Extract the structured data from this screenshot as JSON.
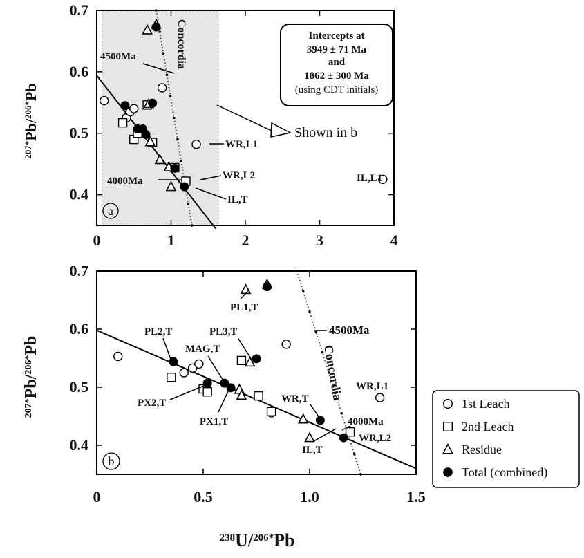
{
  "chart_data": [
    {
      "type": "scatter",
      "panel": "a",
      "xlim": [
        0,
        4
      ],
      "ylim": [
        0.35,
        0.7
      ],
      "xticks": [
        "0",
        "1",
        "2",
        "3",
        "4"
      ],
      "yticks": [
        "0.4",
        "0.5",
        "0.6",
        "0.7"
      ],
      "series": [
        {
          "name": "1st Leach",
          "marker": "circle-open",
          "points": [
            [
              0.1,
              0.553
            ],
            [
              0.4,
              0.525
            ],
            [
              0.45,
              0.535
            ],
            [
              0.5,
              0.54
            ],
            [
              0.88,
              0.574
            ],
            [
              1.34,
              0.482
            ],
            [
              3.85,
              0.425
            ]
          ]
        },
        {
          "name": "2nd Leach",
          "marker": "square-open",
          "points": [
            [
              0.35,
              0.517
            ],
            [
              0.5,
              0.49
            ],
            [
              0.55,
              0.5
            ],
            [
              0.75,
              0.485
            ],
            [
              0.68,
              0.546
            ],
            [
              1.2,
              0.422
            ],
            [
              1.05,
              0.444
            ]
          ]
        },
        {
          "name": "Residue",
          "marker": "triangle-open",
          "points": [
            [
              0.7,
              0.548
            ],
            [
              0.8,
              0.677
            ],
            [
              0.68,
              0.668
            ],
            [
              0.72,
              0.486
            ],
            [
              0.85,
              0.457
            ],
            [
              1.0,
              0.413
            ],
            [
              0.97,
              0.445
            ]
          ]
        },
        {
          "name": "Total (combined)",
          "marker": "circle-filled",
          "points": [
            [
              0.38,
              0.545
            ],
            [
              0.55,
              0.507
            ],
            [
              0.62,
              0.507
            ],
            [
              0.66,
              0.498
            ],
            [
              0.75,
              0.549
            ],
            [
              0.8,
              0.673
            ],
            [
              1.05,
              0.443
            ],
            [
              1.18,
              0.413
            ]
          ]
        }
      ],
      "regression_line": [
        [
          0,
          0.594
        ],
        [
          1.6,
          0.345
        ]
      ],
      "concordia": [
        [
          0.8,
          0.7
        ],
        [
          1.28,
          0.35
        ]
      ],
      "labels": {
        "c4500": "4500Ma",
        "c4000": "4000Ma",
        "concordia": "Concordia",
        "wr_l1": "WR,L1",
        "wr_l2": "WR,L2",
        "il_t": "IL,T",
        "il_l1": "IL,L1",
        "shown": "Shown in b",
        "panel": "a"
      },
      "intercept_box": [
        "Intercepts at",
        "3949 ± 71  Ma",
        "and",
        "1862 ± 300  Ma",
        "(using CDT initials)"
      ]
    },
    {
      "type": "scatter",
      "panel": "b",
      "xlim": [
        0,
        1.5
      ],
      "ylim": [
        0.35,
        0.7
      ],
      "xticks": [
        "0",
        "0.5",
        "1.0",
        "1.5"
      ],
      "yticks": [
        "0.4",
        "0.5",
        "0.6",
        "0.7"
      ],
      "series": [
        {
          "name": "1st Leach",
          "marker": "circle-open",
          "points": [
            [
              0.1,
              0.553
            ],
            [
              0.41,
              0.525
            ],
            [
              0.45,
              0.533
            ],
            [
              0.48,
              0.54
            ],
            [
              0.89,
              0.574
            ],
            [
              1.33,
              0.482
            ],
            [
              0.82,
              0.456
            ]
          ]
        },
        {
          "name": "2nd Leach",
          "marker": "square-open",
          "points": [
            [
              0.35,
              0.517
            ],
            [
              0.5,
              0.497
            ],
            [
              0.52,
              0.492
            ],
            [
              0.68,
              0.546
            ],
            [
              0.76,
              0.485
            ],
            [
              0.82,
              0.458
            ],
            [
              1.19,
              0.423
            ]
          ]
        },
        {
          "name": "Residue",
          "marker": "triangle-open",
          "points": [
            [
              0.7,
              0.668
            ],
            [
              0.8,
              0.677
            ],
            [
              0.72,
              0.543
            ],
            [
              0.67,
              0.496
            ],
            [
              0.68,
              0.486
            ],
            [
              0.97,
              0.445
            ],
            [
              1.0,
              0.413
            ]
          ]
        },
        {
          "name": "Total (combined)",
          "marker": "circle-filled",
          "points": [
            [
              0.36,
              0.544
            ],
            [
              0.52,
              0.507
            ],
            [
              0.6,
              0.507
            ],
            [
              0.63,
              0.499
            ],
            [
              0.75,
              0.549
            ],
            [
              0.8,
              0.673
            ],
            [
              1.05,
              0.443
            ],
            [
              1.16,
              0.413
            ]
          ]
        }
      ],
      "regression_line": [
        [
          0,
          0.598
        ],
        [
          1.5,
          0.36
        ]
      ],
      "concordia": [
        [
          0.94,
          0.7
        ],
        [
          1.24,
          0.35
        ]
      ],
      "labels": {
        "pl1": "PL1,T",
        "pl2": "PL2,T",
        "pl3": "PL3,T",
        "mag": "MAG,T",
        "px2": "PX2,T",
        "px1": "PX1,T",
        "wr_t": "WR,T",
        "wr_l1": "WR,L1",
        "wr_l2": "WR,L2",
        "il_t": "IL,T",
        "c4500": "4500Ma",
        "c4000": "4000Ma",
        "concordia": "Concordia",
        "panel": "b"
      }
    }
  ],
  "axes": {
    "ylabel": "207*Pb/206*Pb",
    "xlabel": "238U/206*Pb"
  },
  "legend": [
    {
      "label": "1st Leach",
      "marker": "circle-open"
    },
    {
      "label": "2nd Leach",
      "marker": "square-open"
    },
    {
      "label": "Residue",
      "marker": "triangle-open"
    },
    {
      "label": "Total (combined)",
      "marker": "circle-filled"
    }
  ]
}
